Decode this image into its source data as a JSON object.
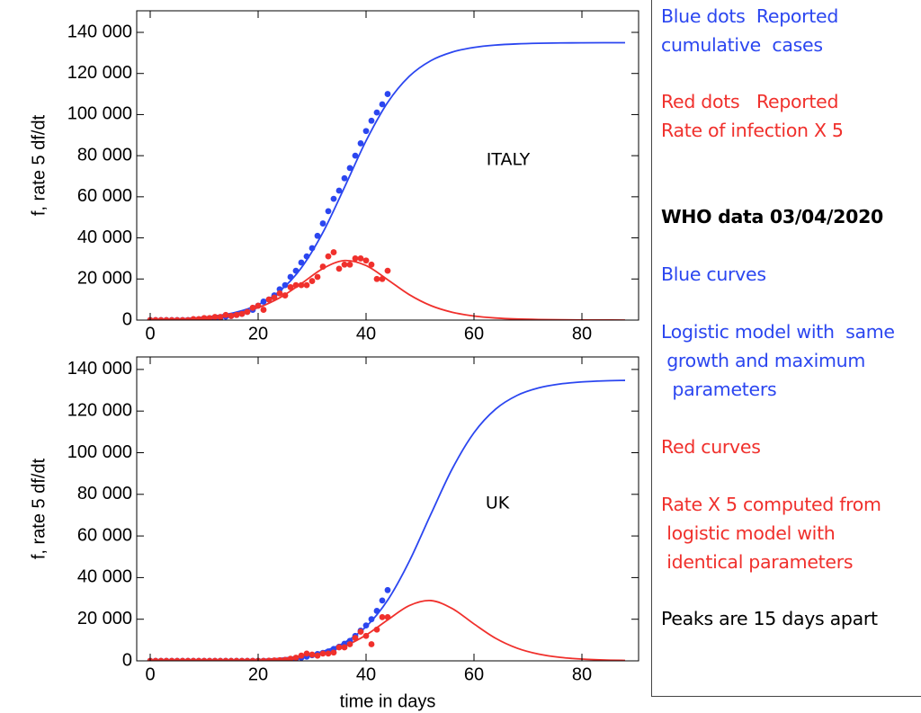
{
  "chart_data": [
    {
      "type": "line",
      "ylabel": "f,   rate 5 df/dt",
      "annotation": "ITALY",
      "xlim": [
        -2.5,
        90.5
      ],
      "xticks": [
        0,
        20,
        40,
        60,
        80
      ],
      "ylim": [
        0,
        150500
      ],
      "yticks": [
        {
          "value": 0,
          "label": "0"
        },
        {
          "value": 20000,
          "label": "20 000"
        },
        {
          "value": 40000,
          "label": "40 000"
        },
        {
          "value": 60000,
          "label": "60 000"
        },
        {
          "value": 80000,
          "label": "80 000"
        },
        {
          "value": 100000,
          "label": "100 000"
        },
        {
          "value": 120000,
          "label": "120 000"
        },
        {
          "value": 140000,
          "label": "140 000"
        }
      ],
      "series": [
        {
          "mode": "lines",
          "color": "#2b46f0",
          "x": [
            0,
            4,
            8,
            12,
            16,
            20,
            24,
            28,
            32,
            36,
            40,
            44,
            48,
            52,
            56,
            60,
            64,
            68,
            72,
            76,
            80,
            84,
            88
          ],
          "values": [
            253,
            503,
            997,
            1970,
            3858,
            7467,
            14084,
            25400,
            42614,
            64593,
            87220,
            105858,
            118600,
            126228,
            130442,
            132670,
            133818,
            134403,
            134700,
            134849,
            134924,
            134962,
            134981
          ]
        },
        {
          "mode": "lines",
          "color": "#f0302c",
          "x": [
            0,
            4,
            8,
            12,
            16,
            20,
            24,
            28,
            32,
            36,
            40,
            44,
            48,
            52,
            56,
            60,
            64,
            68,
            72,
            76,
            80,
            84,
            88
          ],
          "values": [
            217,
            431,
            851,
            1669,
            3223,
            6066,
            10849,
            17735,
            25078,
            28968,
            26546,
            19655,
            12392,
            7056,
            3792,
            1969,
            1008,
            511,
            257,
            129,
            65,
            33,
            16
          ]
        },
        {
          "mode": "markers",
          "color": "#2b46f0",
          "x": [
            0,
            1,
            2,
            3,
            4,
            5,
            6,
            7,
            8,
            9,
            10,
            11,
            12,
            13,
            14,
            15,
            16,
            17,
            18,
            19,
            20,
            21,
            22,
            23,
            24,
            25,
            26,
            27,
            28,
            29,
            30,
            31,
            32,
            33,
            34,
            35,
            36,
            37,
            38,
            39,
            40,
            41,
            42,
            43,
            44
          ],
          "values": [
            3,
            3,
            3,
            3,
            3,
            3,
            3,
            3,
            20,
            80,
            400,
            650,
            800,
            1100,
            1700,
            2000,
            2500,
            3000,
            4000,
            5000,
            7000,
            9000,
            10000,
            12000,
            15000,
            17000,
            21000,
            24000,
            28000,
            31000,
            35000,
            41000,
            47000,
            53000,
            59000,
            63000,
            69000,
            74000,
            80000,
            86000,
            92000,
            97000,
            101000,
            105000,
            110000
          ]
        },
        {
          "mode": "markers",
          "color": "#f0302c",
          "x": [
            0,
            1,
            2,
            3,
            4,
            5,
            6,
            7,
            8,
            9,
            10,
            11,
            12,
            13,
            14,
            15,
            16,
            17,
            18,
            19,
            20,
            21,
            22,
            23,
            24,
            25,
            26,
            27,
            28,
            29,
            30,
            31,
            32,
            33,
            34,
            35,
            36,
            37,
            38,
            39,
            40,
            41,
            42,
            43,
            44
          ],
          "values": [
            0,
            0,
            0,
            0,
            0,
            0,
            0,
            0,
            500,
            500,
            1000,
            1000,
            1500,
            1500,
            2500,
            2000,
            2500,
            3000,
            4000,
            6000,
            7000,
            5000,
            10000,
            11000,
            13000,
            12000,
            16000,
            17000,
            17000,
            17000,
            19000,
            21000,
            26000,
            31000,
            33000,
            25000,
            27000,
            27000,
            30000,
            30000,
            29000,
            27000,
            20000,
            20000,
            24000
          ]
        }
      ]
    },
    {
      "type": "line",
      "ylabel": "f,   rate 5 df/dt",
      "xlabel": "time in days",
      "annotation": "UK",
      "xlim": [
        -2.5,
        90.5
      ],
      "xticks": [
        0,
        20,
        40,
        60,
        80
      ],
      "ylim": [
        0,
        146000
      ],
      "yticks": [
        {
          "value": 0,
          "label": "0"
        },
        {
          "value": 20000,
          "label": "20 000"
        },
        {
          "value": 40000,
          "label": "40 000"
        },
        {
          "value": 60000,
          "label": "60 000"
        },
        {
          "value": 80000,
          "label": "80 000"
        },
        {
          "value": 100000,
          "label": "100 000"
        },
        {
          "value": 120000,
          "label": "120 000"
        },
        {
          "value": 140000,
          "label": "140 000"
        }
      ],
      "series": [
        {
          "mode": "lines",
          "color": "#2b46f0",
          "x": [
            0,
            4,
            8,
            12,
            16,
            20,
            24,
            28,
            32,
            36,
            40,
            44,
            48,
            52,
            56,
            60,
            64,
            68,
            72,
            76,
            80,
            84,
            88
          ],
          "values": [
            19,
            38,
            76,
            151,
            300,
            597,
            1181,
            2330,
            4558,
            8778,
            16406,
            29139,
            47771,
            70403,
            92400,
            109597,
            120914,
            127532,
            131142,
            133032,
            134004,
            134498,
            134747
          ]
        },
        {
          "mode": "lines",
          "color": "#f0302c",
          "x": [
            0,
            4,
            8,
            12,
            16,
            20,
            24,
            28,
            32,
            36,
            40,
            44,
            48,
            52,
            56,
            60,
            64,
            68,
            72,
            76,
            80,
            84,
            88
          ],
          "values": [
            16,
            33,
            65,
            130,
            257,
            511,
            1008,
            1970,
            3787,
            7058,
            12395,
            19652,
            26544,
            28971,
            25080,
            17738,
            10846,
            6065,
            3223,
            1668,
            851,
            431,
            217
          ]
        },
        {
          "mode": "markers",
          "color": "#2b46f0",
          "x": [
            0,
            1,
            2,
            3,
            4,
            5,
            6,
            7,
            8,
            9,
            10,
            11,
            12,
            13,
            14,
            15,
            16,
            17,
            18,
            19,
            20,
            21,
            22,
            23,
            24,
            25,
            26,
            27,
            28,
            29,
            30,
            31,
            32,
            33,
            34,
            35,
            36,
            37,
            38,
            39,
            40,
            41,
            42,
            43,
            44
          ],
          "values": [
            0,
            0,
            0,
            0,
            0,
            0,
            0,
            0,
            0,
            0,
            0,
            0,
            0,
            0,
            0,
            0,
            0,
            0,
            0,
            0,
            5,
            10,
            20,
            40,
            80,
            500,
            800,
            1000,
            1500,
            2000,
            2700,
            3300,
            3800,
            4500,
            5700,
            6800,
            8200,
            9600,
            12000,
            14500,
            17000,
            20000,
            24000,
            29000,
            34000
          ]
        },
        {
          "mode": "markers",
          "color": "#f0302c",
          "x": [
            0,
            1,
            2,
            3,
            4,
            5,
            6,
            7,
            8,
            9,
            10,
            11,
            12,
            13,
            14,
            15,
            16,
            17,
            18,
            19,
            20,
            21,
            22,
            23,
            24,
            25,
            26,
            27,
            28,
            29,
            30,
            31,
            32,
            33,
            34,
            35,
            36,
            37,
            38,
            39,
            40,
            41,
            42,
            43,
            44
          ],
          "values": [
            0,
            0,
            0,
            0,
            0,
            0,
            0,
            0,
            0,
            0,
            0,
            0,
            0,
            0,
            0,
            0,
            0,
            0,
            0,
            0,
            0,
            0,
            100,
            200,
            300,
            500,
            1000,
            1500,
            2500,
            3500,
            3000,
            2500,
            3500,
            3500,
            4000,
            6500,
            6500,
            8000,
            11000,
            14000,
            12000,
            8000,
            15000,
            21000,
            21000
          ]
        }
      ]
    }
  ],
  "sidebar": [
    {
      "color": "#2b46f0",
      "lines": [
        "Blue dots  Reported",
        "cumulative  cases"
      ]
    },
    {
      "color": "#f0302c",
      "lines": [
        "Red dots   Reported",
        "Rate of infection X 5"
      ]
    },
    {
      "color": "#000000",
      "bold": true,
      "lines": [
        "WHO data 03/04/2020"
      ]
    },
    {
      "color": "#2b46f0",
      "lines": [
        "Blue curves"
      ]
    },
    {
      "color": "#2b46f0",
      "lines": [
        "Logistic model with  same",
        " growth and maximum",
        "  parameters"
      ]
    },
    {
      "color": "#f0302c",
      "lines": [
        "Red curves"
      ]
    },
    {
      "color": "#f0302c",
      "lines": [
        "Rate X 5 computed from",
        " logistic model with",
        " identical parameters"
      ]
    },
    {
      "color": "#000000",
      "lines": [
        "Peaks are 15 days apart"
      ]
    }
  ]
}
